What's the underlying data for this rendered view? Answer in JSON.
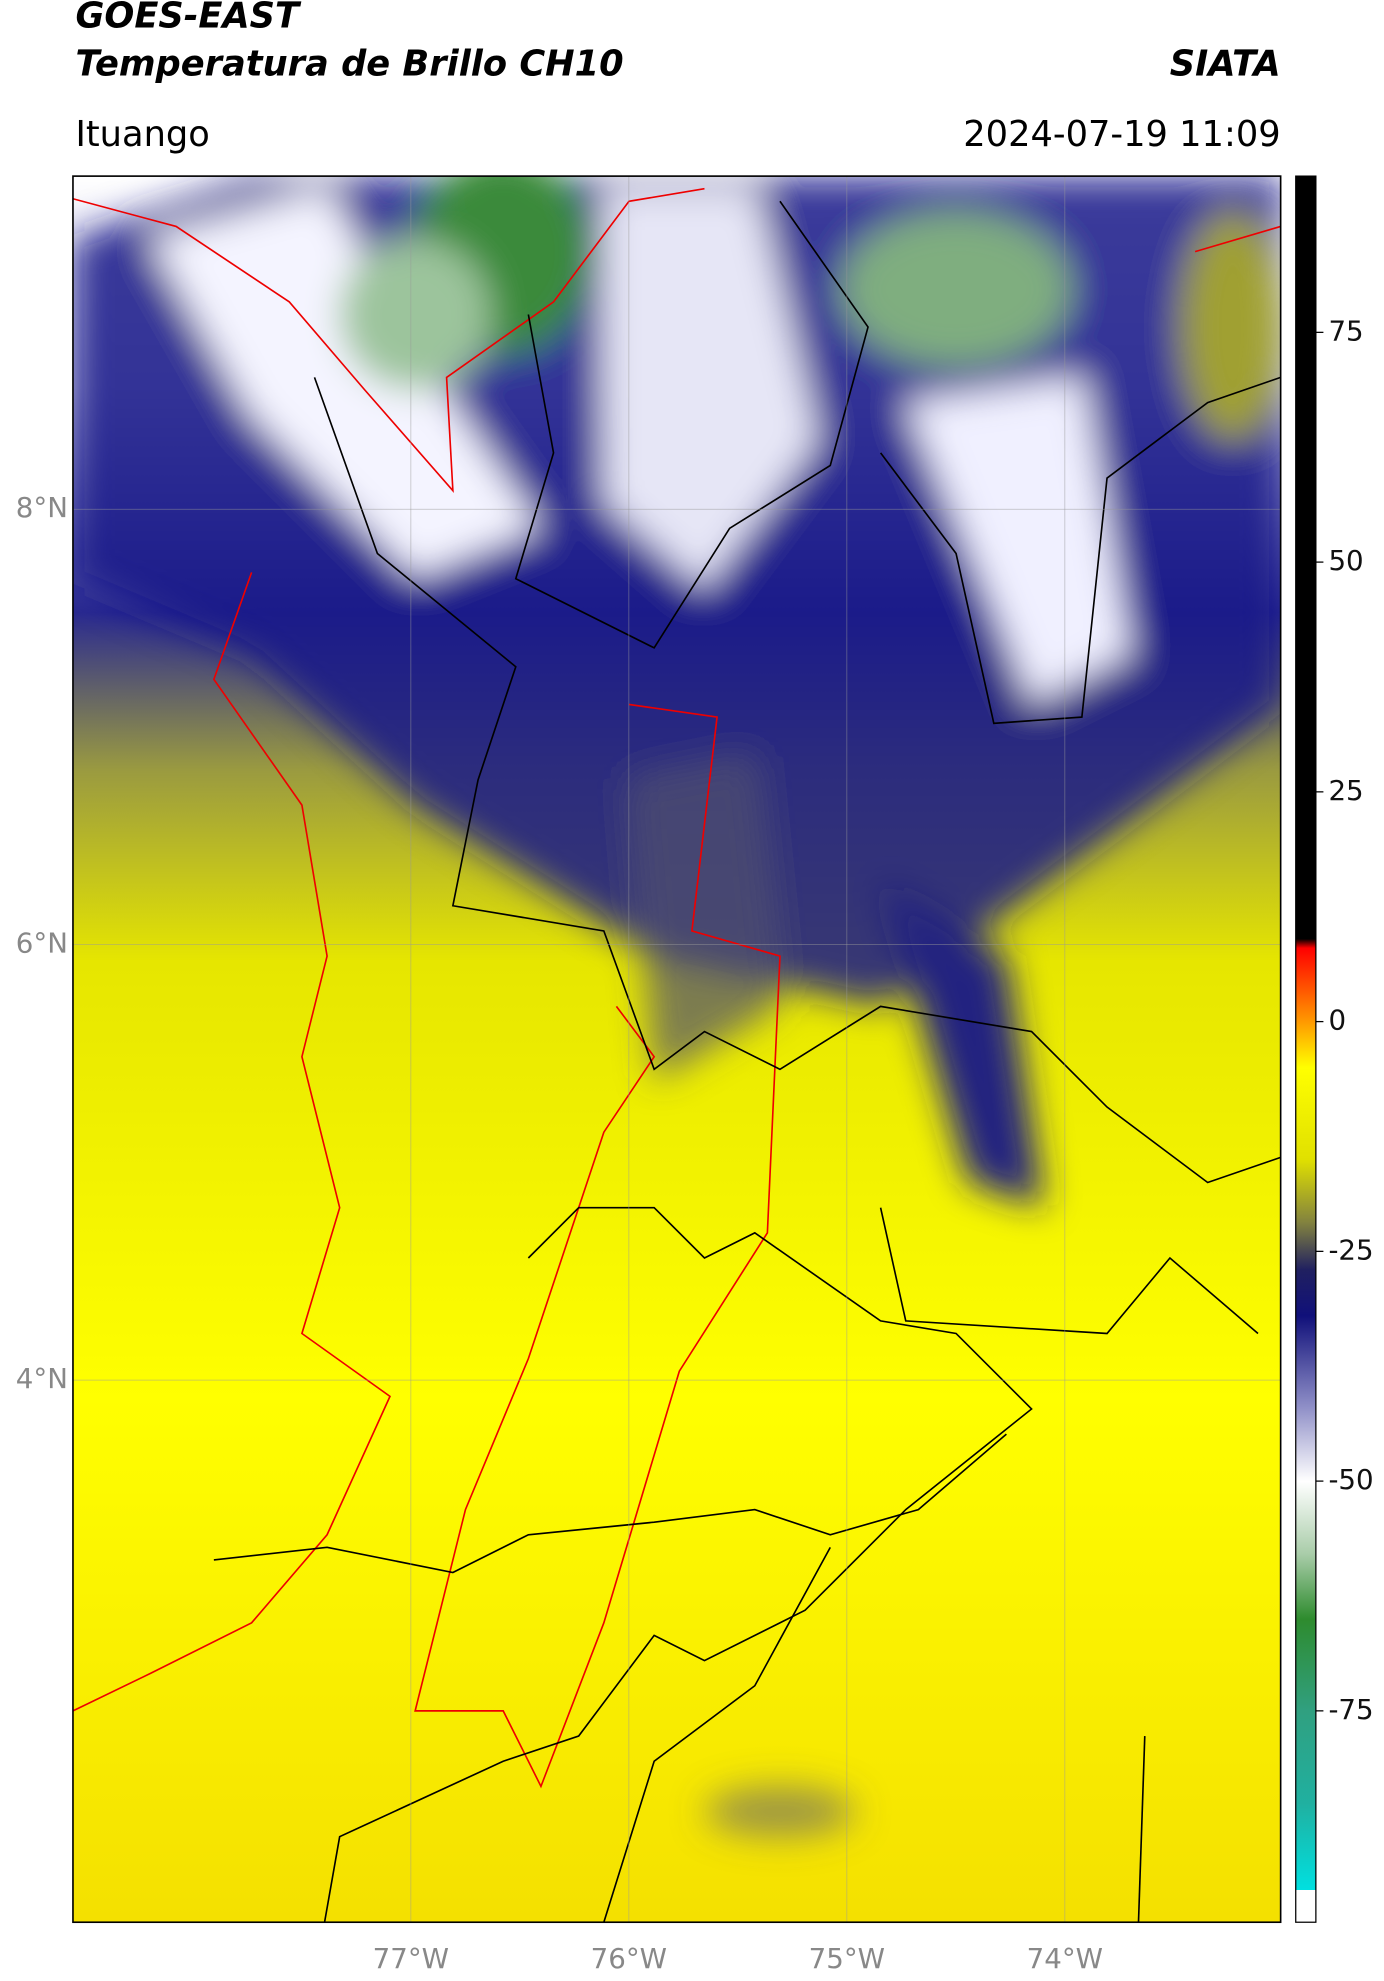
{
  "header": {
    "title": "GOES-EAST",
    "subtitle": "Temperatura de Brillo CH10",
    "source": "SIATA",
    "location": "Ituango",
    "datetime": "2024-07-19 11:09"
  },
  "map": {
    "lonlim": [
      -78.55,
      -73.01
    ],
    "latlim": [
      1.51,
      9.53
    ],
    "grid": true,
    "xticks": [
      {
        "value": -77,
        "label": "77°W"
      },
      {
        "value": -76,
        "label": "76°W"
      },
      {
        "value": -75,
        "label": "75°W"
      },
      {
        "value": -74,
        "label": "74°W"
      }
    ],
    "yticks": [
      {
        "value": 8,
        "label": "8°N"
      },
      {
        "value": 6,
        "label": "6°N"
      },
      {
        "value": 4,
        "label": "4°N"
      }
    ]
  },
  "colorbar": {
    "lim": [
      -98,
      92
    ],
    "ticks": [
      75,
      50,
      25,
      0,
      -25,
      -50,
      -75
    ],
    "stops": [
      {
        "value": -98,
        "color": "#ffffff"
      },
      {
        "value": -94.5,
        "color": "#ffffff"
      },
      {
        "value": -94.5,
        "color": "#00e0e0"
      },
      {
        "value": -85,
        "color": "#20b0a0"
      },
      {
        "value": -75,
        "color": "#30a080"
      },
      {
        "value": -65,
        "color": "#2e8b2e"
      },
      {
        "value": -58,
        "color": "#a8cca8"
      },
      {
        "value": -50,
        "color": "#ffffff"
      },
      {
        "value": -42,
        "color": "#9090c8"
      },
      {
        "value": -32,
        "color": "#10107a"
      },
      {
        "value": -27,
        "color": "#202060"
      },
      {
        "value": -22,
        "color": "#808040"
      },
      {
        "value": -15,
        "color": "#e0e000"
      },
      {
        "value": -5,
        "color": "#ffff00"
      },
      {
        "value": 0,
        "color": "#ff9900"
      },
      {
        "value": 8,
        "color": "#ff0000"
      },
      {
        "value": 9,
        "color": "#000000"
      },
      {
        "value": 92,
        "color": "#000000"
      }
    ]
  }
}
